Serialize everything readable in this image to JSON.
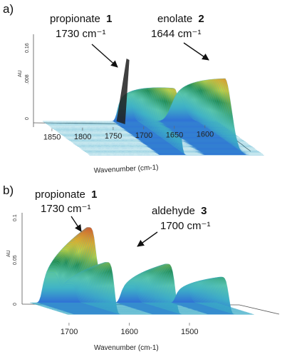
{
  "panels": [
    {
      "letter": "a)",
      "annotations": [
        {
          "label": "propionate",
          "bold": "1",
          "value": "1730 cm⁻¹"
        },
        {
          "label": "enolate",
          "bold": "2",
          "value": "1644 cm⁻¹"
        }
      ]
    },
    {
      "letter": "b)",
      "annotations": [
        {
          "label": "propionate",
          "bold": "1",
          "value": "1730 cm⁻¹"
        },
        {
          "label": "aldehyde",
          "bold": "3",
          "value": "1700 cm⁻¹"
        }
      ]
    }
  ],
  "chart_data": [
    {
      "type": "area",
      "subtype": "3d-waterfall",
      "title": "",
      "xlabel": "Wavenumber (cm-1)",
      "ylabel": "AU",
      "x_direction": "descending",
      "xlim": [
        1865,
        1580
      ],
      "x_ticks": [
        1850,
        1800,
        1750,
        1700,
        1650,
        1600
      ],
      "y_ticks": [
        "0",
        ".008",
        "0.16"
      ],
      "ylim": [
        0,
        0.018
      ],
      "bands": [
        {
          "center": 1730,
          "width": 12,
          "peak": 0.0135,
          "shape": "plateau"
        },
        {
          "center": 1644,
          "width": 11,
          "peak": 0.0155,
          "shape": "peak"
        }
      ],
      "color_scale": [
        "#2f6fd6",
        "#3fb3c6",
        "#5ec9a8",
        "#1f8a4a",
        "#c9d43a",
        "#f0a21a",
        "#e0531c"
      ]
    },
    {
      "type": "area",
      "subtype": "3d-waterfall",
      "title": "",
      "xlabel": "Wavenumber (cm-1)",
      "ylabel": "AU",
      "x_direction": "descending",
      "xlim": [
        1765,
        1455
      ],
      "x_ticks": [
        1700,
        1600,
        1500
      ],
      "y_ticks": [
        "0",
        "0.05",
        "0.1"
      ],
      "ylim": [
        0,
        0.1
      ],
      "bands": [
        {
          "center": 1730,
          "width": 13,
          "peak": 0.1,
          "shape": "plateau"
        },
        {
          "center": 1700,
          "width": 12,
          "peak": 0.06,
          "shape": "plateau"
        },
        {
          "center": 1600,
          "width": 13,
          "peak": 0.058,
          "shape": "plateau"
        },
        {
          "center": 1510,
          "width": 12,
          "peak": 0.043,
          "shape": "plateau"
        }
      ],
      "color_scale": [
        "#2f6fd6",
        "#3fb3c6",
        "#5ec9a8",
        "#1f8a4a",
        "#c9d43a",
        "#f0a21a",
        "#e0531c"
      ]
    }
  ]
}
